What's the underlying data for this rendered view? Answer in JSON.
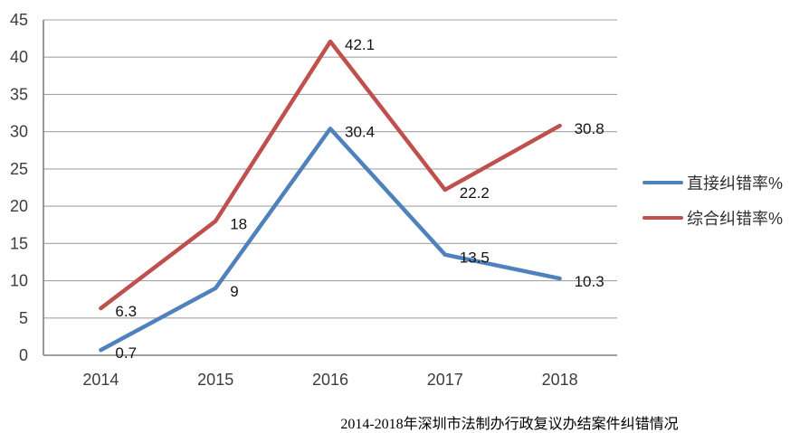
{
  "chart_data": {
    "type": "line",
    "title": "2014-2018年深圳市法制办行政复议办结案件纠错情况",
    "categories": [
      "2014",
      "2015",
      "2016",
      "2017",
      "2018"
    ],
    "series": [
      {
        "name": "直接纠错率%",
        "color": "#4F81BD",
        "values": [
          0.7,
          9,
          30.4,
          13.5,
          10.3
        ]
      },
      {
        "name": "综合纠错率%",
        "color": "#C0504D",
        "values": [
          6.3,
          18,
          42.1,
          22.2,
          30.8
        ]
      }
    ],
    "xlabel": "",
    "ylabel": "",
    "ylim": [
      0,
      45
    ],
    "ytick_step": 5,
    "grid": true,
    "grid_color": "#a3a3a3",
    "axis_color": "#808080",
    "legend_position": "right",
    "data_labels": true
  }
}
